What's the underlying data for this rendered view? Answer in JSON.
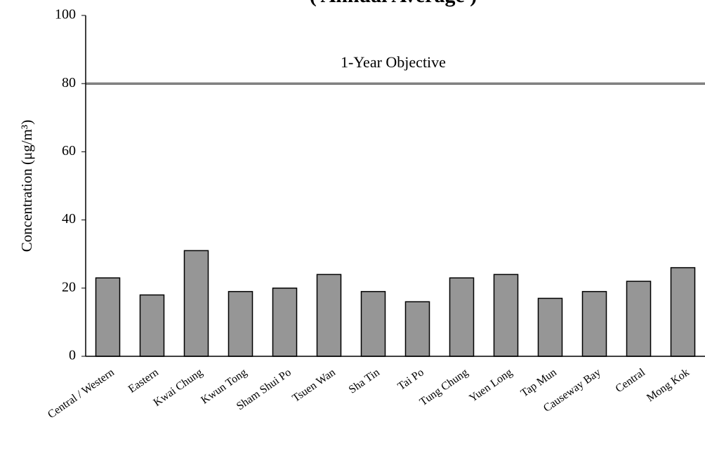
{
  "chart_data": {
    "type": "bar",
    "title": "( Annual Average )",
    "y_label": "Concentration (μg/m³)",
    "categories": [
      "Central / Western",
      "Eastern",
      "Kwai Chung",
      "Kwun Tong",
      "Sham Shui Po",
      "Tsuen Wan",
      "Sha Tin",
      "Tai Po",
      "Tung Chung",
      "Yuen Long",
      "Tap Mun",
      "Causeway Bay",
      "Central",
      "Mong Kok"
    ],
    "values": [
      23,
      18,
      31,
      19,
      20,
      24,
      19,
      16,
      23,
      24,
      17,
      19,
      22,
      26
    ],
    "color": "#969696",
    "ylim": [
      0,
      100
    ],
    "yticks": [
      0,
      20,
      40,
      60,
      80,
      100
    ],
    "objective": {
      "value": 80,
      "label": "1-Year Objective",
      "color": "#808080"
    }
  }
}
